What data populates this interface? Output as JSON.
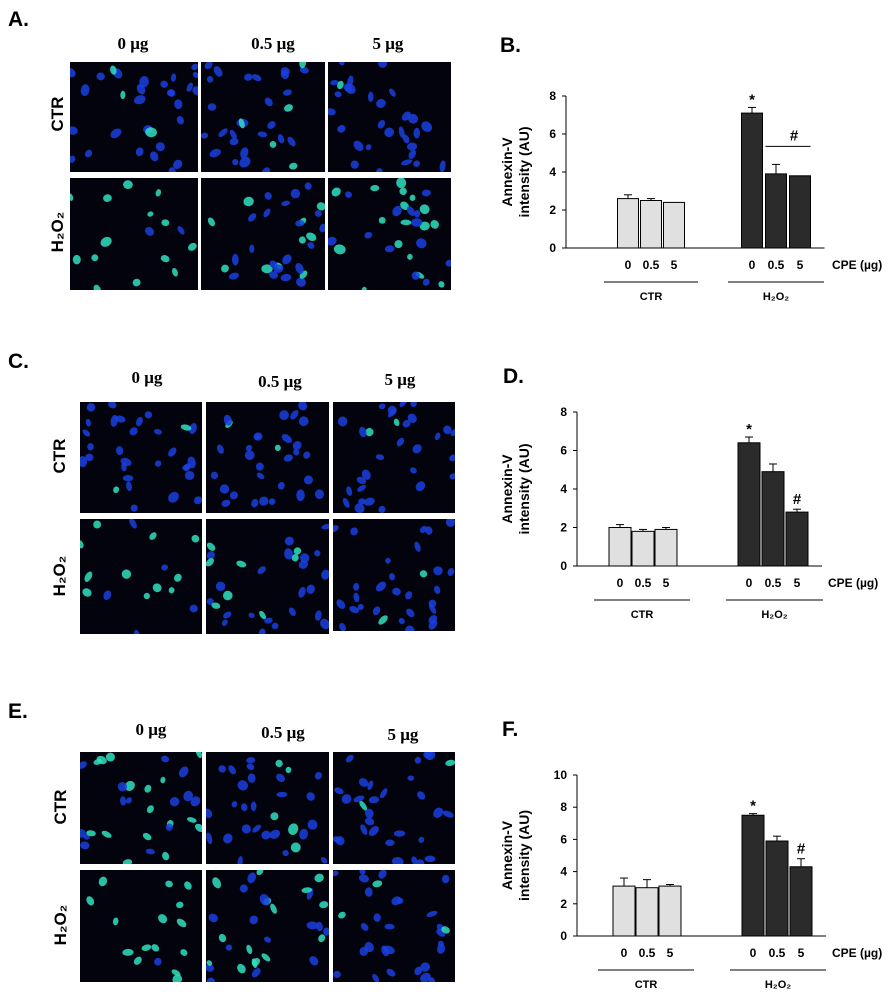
{
  "panels": {
    "images": [
      {
        "letter": "A.",
        "doses": [
          "0 μg",
          "0.5 μg",
          "5 μg"
        ],
        "rows": [
          "CTR",
          "H₂O₂"
        ]
      },
      {
        "letter": "C.",
        "doses": [
          "0 μg",
          "0.5 μg",
          "5 μg"
        ],
        "rows": [
          "CTR",
          "H₂O₂"
        ]
      },
      {
        "letter": "E.",
        "doses": [
          "0 μg",
          "0.5 μg",
          "5 μg"
        ],
        "rows": [
          "CTR",
          "H₂O₂"
        ]
      }
    ]
  },
  "colors": {
    "ctr_bar": "#e0e0e0",
    "h2o2_bar": "#2b2b2b",
    "nucleus": "#1a3fe0",
    "annexin": "#2fe0c0",
    "micro_bg": "#03030d"
  },
  "chart_data": [
    {
      "letter": "B.",
      "type": "bar",
      "ylabel_line1": "Annexin-V",
      "ylabel_line2": "intensity  (AU)",
      "ylim": [
        0,
        8
      ],
      "yticks": [
        0,
        2,
        4,
        6,
        8
      ],
      "categories": [
        "0",
        "0.5",
        "5",
        "0",
        "0.5",
        "5"
      ],
      "groups": [
        "CTR",
        "H₂O₂"
      ],
      "x_unit": "CPE (µg)",
      "values": [
        2.6,
        2.5,
        2.4,
        7.1,
        3.9,
        3.8
      ],
      "errors": [
        0.2,
        0.1,
        0.0,
        0.3,
        0.5,
        0.0
      ],
      "annotations": [
        {
          "bar": 3,
          "text": "*"
        },
        {
          "bracket": [
            4,
            5
          ],
          "text": "#"
        }
      ]
    },
    {
      "letter": "D.",
      "type": "bar",
      "ylabel_line1": "Annexin-V",
      "ylabel_line2": "intensity  (AU)",
      "ylim": [
        0,
        8
      ],
      "yticks": [
        0,
        2,
        4,
        6,
        8
      ],
      "categories": [
        "0",
        "0.5",
        "5",
        "0",
        "0.5",
        "5"
      ],
      "groups": [
        "CTR",
        "H₂O₂"
      ],
      "x_unit": "CPE (µg)",
      "values": [
        2.0,
        1.8,
        1.9,
        6.4,
        4.9,
        2.8
      ],
      "errors": [
        0.15,
        0.1,
        0.1,
        0.3,
        0.4,
        0.15
      ],
      "annotations": [
        {
          "bar": 3,
          "text": "*"
        },
        {
          "bar": 5,
          "text": "#"
        }
      ]
    },
    {
      "letter": "F.",
      "type": "bar",
      "ylabel_line1": "Annexin-V",
      "ylabel_line2": "intensity  (AU)",
      "ylim": [
        0,
        10
      ],
      "yticks": [
        0,
        2,
        4,
        6,
        8,
        10
      ],
      "categories": [
        "0",
        "0.5",
        "5",
        "0",
        "0.5",
        "5"
      ],
      "groups": [
        "CTR",
        "H₂O₂"
      ],
      "x_unit": "CPE (µg)",
      "values": [
        3.1,
        3.0,
        3.1,
        7.5,
        5.9,
        4.3
      ],
      "errors": [
        0.5,
        0.5,
        0.1,
        0.1,
        0.3,
        0.5
      ],
      "annotations": [
        {
          "bar": 3,
          "text": "*"
        },
        {
          "bar": 5,
          "text": "#"
        }
      ]
    }
  ]
}
